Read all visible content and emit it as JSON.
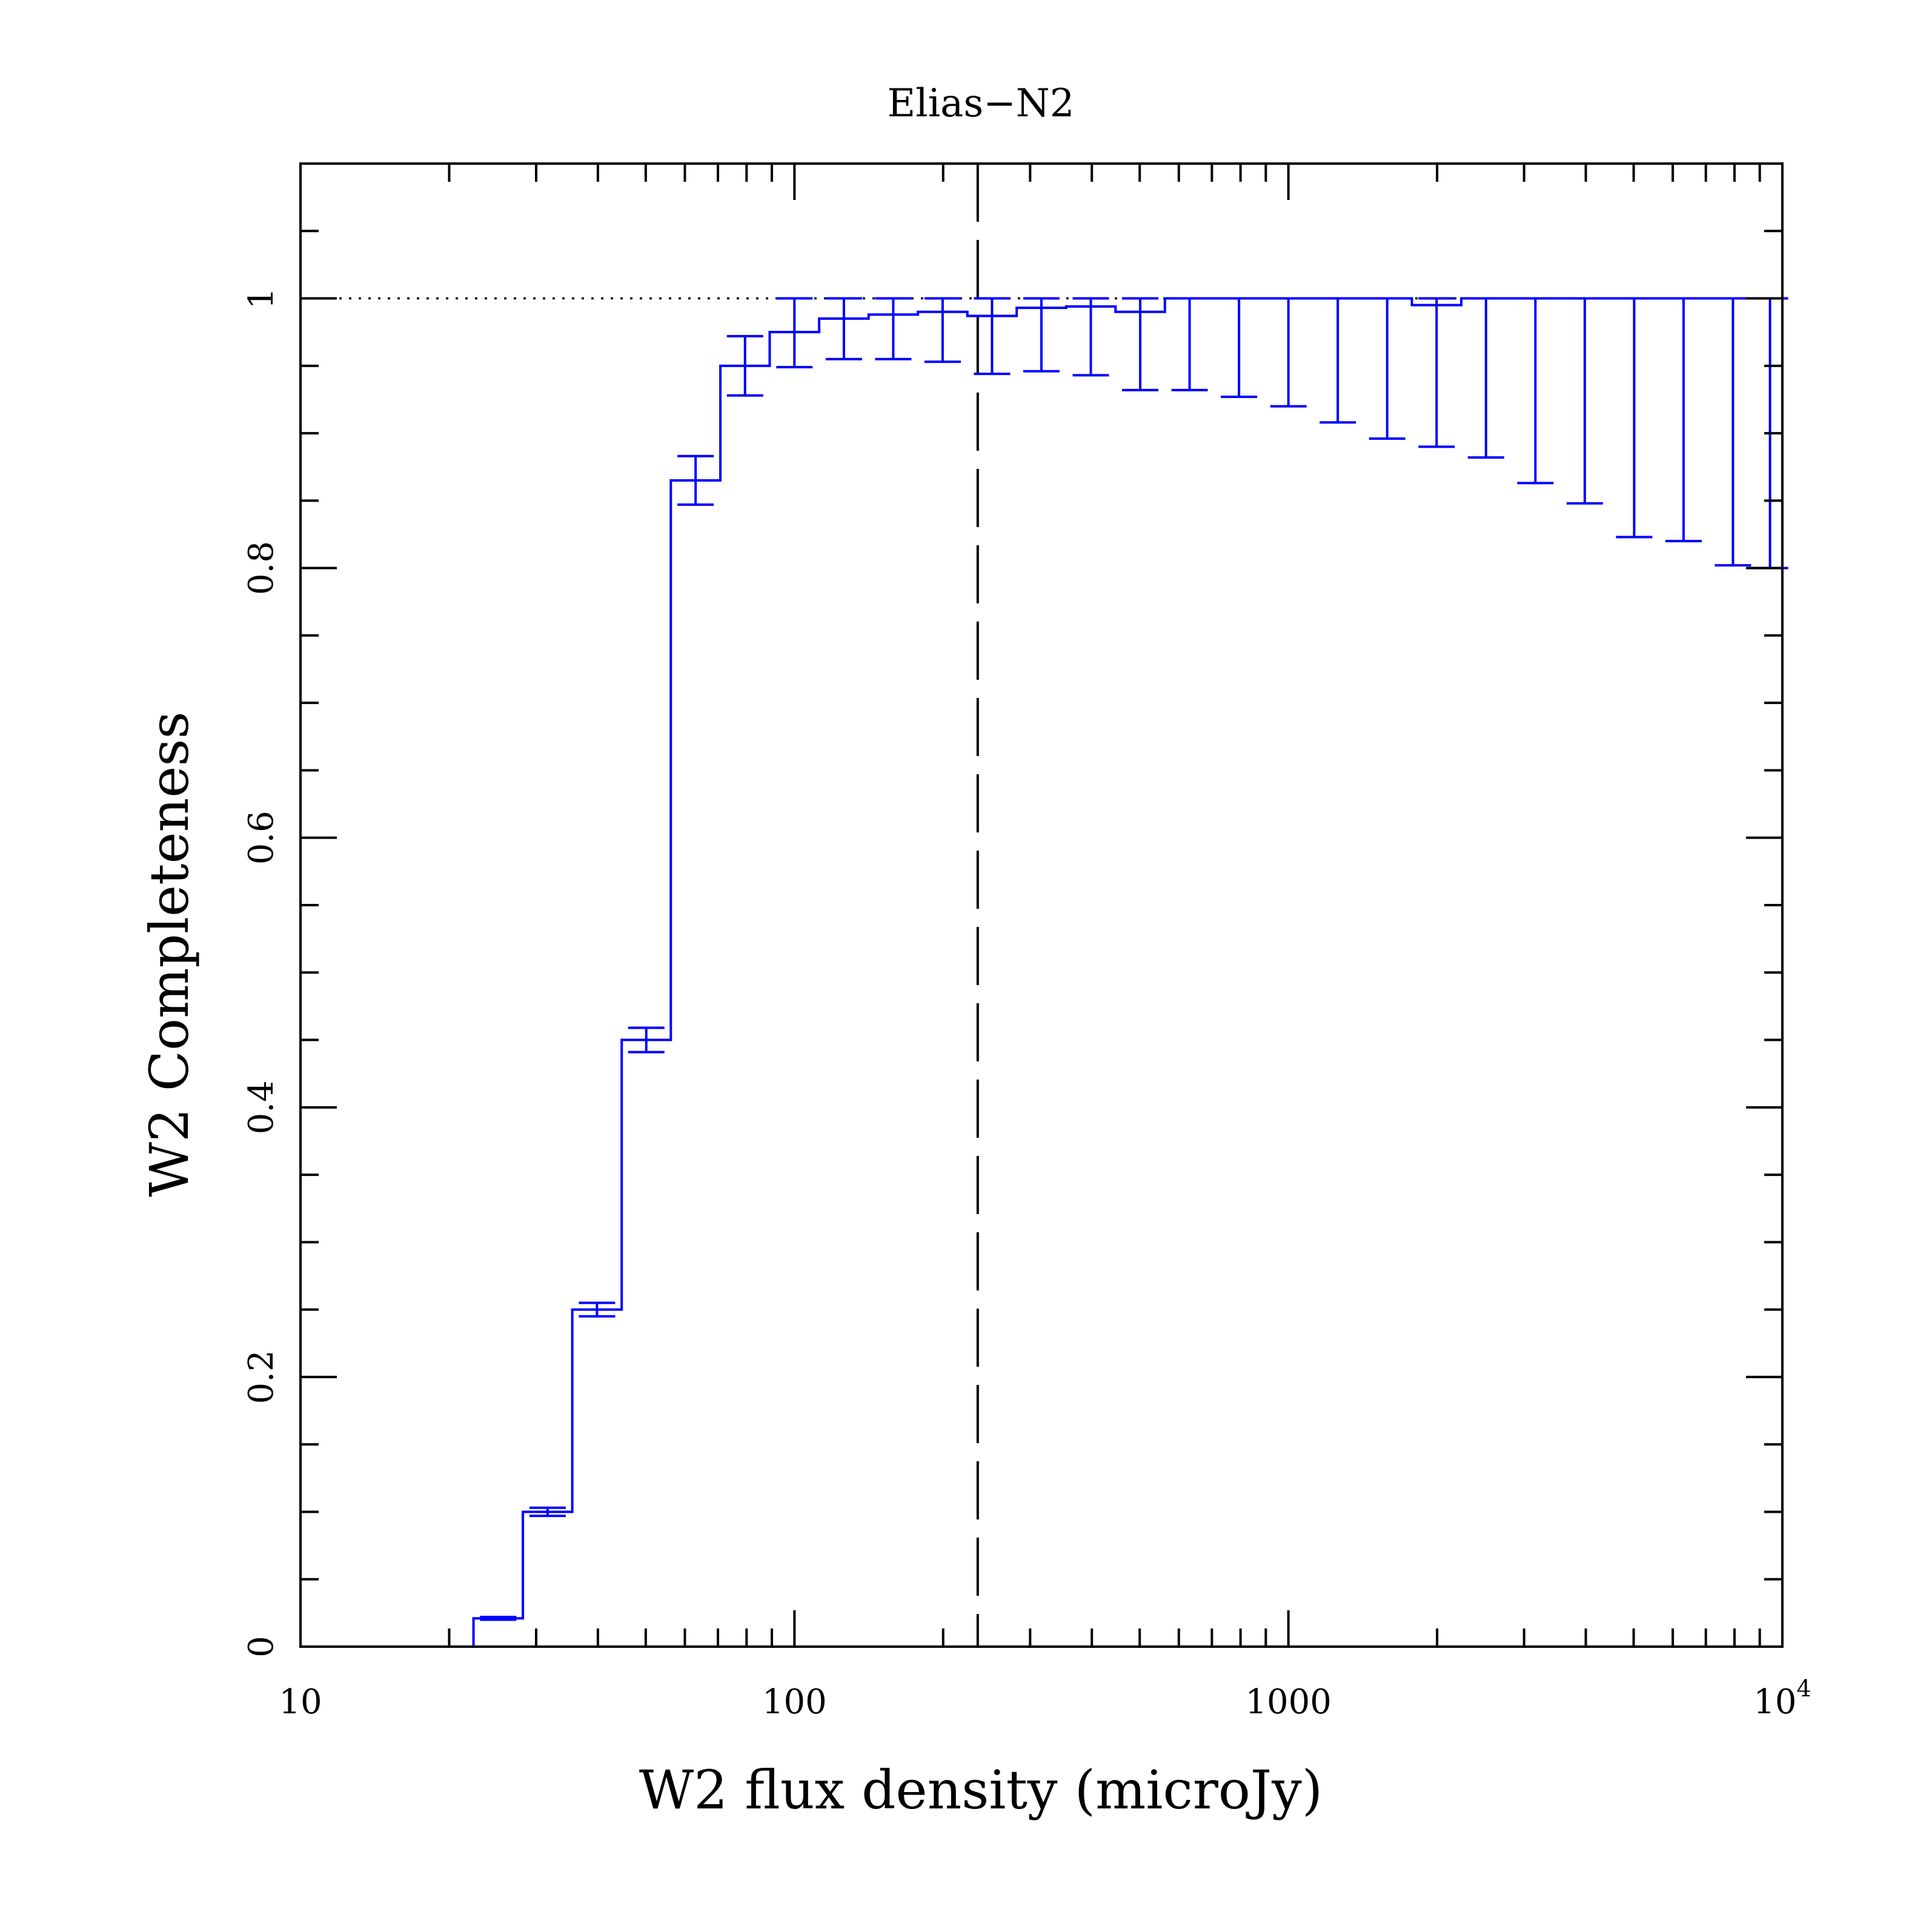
{
  "chart_data": {
    "type": "line",
    "title": "Elias−N2",
    "xlabel": "W2 flux density (microJy)",
    "ylabel": "W2 Completeness",
    "x_scale": "log",
    "xlim": [
      10,
      10000
    ],
    "ylim": [
      0,
      1.1
    ],
    "x_ticks": [
      {
        "value": 10,
        "label": "10"
      },
      {
        "value": 100,
        "label": "100"
      },
      {
        "value": 1000,
        "label": "1000"
      },
      {
        "value": 10000,
        "label": "10",
        "sup": "4"
      }
    ],
    "y_ticks": [
      {
        "value": 0,
        "label": "0"
      },
      {
        "value": 0.2,
        "label": "0.2"
      },
      {
        "value": 0.4,
        "label": "0.4"
      },
      {
        "value": 0.6,
        "label": "0.6"
      },
      {
        "value": 0.8,
        "label": "0.8"
      },
      {
        "value": 1,
        "label": "1"
      }
    ],
    "grid": false,
    "reference_lines": {
      "horizontal_dotted_y": 1.0,
      "vertical_dashed_x": 235
    },
    "series": [
      {
        "color": "#0000ff",
        "style": "step-histogram-with-errorbars",
        "bins": [
          {
            "lo": 10.0,
            "hi": 12.6,
            "y": 0.0,
            "err_lo": 0.0,
            "err_hi": 0.0
          },
          {
            "lo": 12.6,
            "hi": 15.8,
            "y": 0.0,
            "err_lo": 0.0,
            "err_hi": 0.0
          },
          {
            "lo": 15.8,
            "hi": 20.0,
            "y": 0.0,
            "err_lo": 0.0,
            "err_hi": 0.0
          },
          {
            "lo": 20.0,
            "hi": 22.4,
            "y": 0.0,
            "err_lo": 0.0,
            "err_hi": 0.0
          },
          {
            "lo": 22.4,
            "hi": 28.2,
            "y": 0.021,
            "err_lo": 0.001,
            "err_hi": 0.001
          },
          {
            "lo": 28.2,
            "hi": 35.5,
            "y": 0.1,
            "err_lo": 0.003,
            "err_hi": 0.003
          },
          {
            "lo": 35.5,
            "hi": 44.7,
            "y": 0.25,
            "err_lo": 0.005,
            "err_hi": 0.005
          },
          {
            "lo": 44.7,
            "hi": 56.2,
            "y": 0.45,
            "err_lo": 0.009,
            "err_hi": 0.009
          },
          {
            "lo": 56.2,
            "hi": 70.8,
            "y": 0.865,
            "err_lo": 0.018,
            "err_hi": 0.018
          },
          {
            "lo": 70.8,
            "hi": 89.1,
            "y": 0.95,
            "err_lo": 0.022,
            "err_hi": 0.022
          },
          {
            "lo": 89.1,
            "hi": 112.2,
            "y": 0.975,
            "err_lo": 0.026,
            "err_hi": 0.025
          },
          {
            "lo": 112.2,
            "hi": 141.3,
            "y": 0.985,
            "err_lo": 0.03,
            "err_hi": 0.015
          },
          {
            "lo": 141.3,
            "hi": 177.8,
            "y": 0.988,
            "err_lo": 0.033,
            "err_hi": 0.012
          },
          {
            "lo": 177.8,
            "hi": 223.9,
            "y": 0.99,
            "err_lo": 0.037,
            "err_hi": 0.01
          },
          {
            "lo": 223.9,
            "hi": 281.8,
            "y": 0.987,
            "err_lo": 0.043,
            "err_hi": 0.013
          },
          {
            "lo": 281.8,
            "hi": 354.8,
            "y": 0.993,
            "err_lo": 0.047,
            "err_hi": 0.007
          },
          {
            "lo": 354.8,
            "hi": 446.7,
            "y": 0.994,
            "err_lo": 0.051,
            "err_hi": 0.006
          },
          {
            "lo": 446.7,
            "hi": 562.3,
            "y": 0.99,
            "err_lo": 0.058,
            "err_hi": 0.01
          },
          {
            "lo": 562.3,
            "hi": 707.9,
            "y": 1.0,
            "err_lo": 0.068,
            "err_hi": 0.0
          },
          {
            "lo": 707.9,
            "hi": 891.3,
            "y": 1.0,
            "err_lo": 0.073,
            "err_hi": 0.0
          },
          {
            "lo": 891.3,
            "hi": 1122.0,
            "y": 1.0,
            "err_lo": 0.08,
            "err_hi": 0.0
          },
          {
            "lo": 1122.0,
            "hi": 1412.5,
            "y": 1.0,
            "err_lo": 0.092,
            "err_hi": 0.0
          },
          {
            "lo": 1412.5,
            "hi": 1778.3,
            "y": 1.0,
            "err_lo": 0.104,
            "err_hi": 0.0
          },
          {
            "lo": 1778.3,
            "hi": 2238.7,
            "y": 0.995,
            "err_lo": 0.105,
            "err_hi": 0.005
          },
          {
            "lo": 2238.7,
            "hi": 2818.4,
            "y": 1.0,
            "err_lo": 0.118,
            "err_hi": 0.0
          },
          {
            "lo": 2818.4,
            "hi": 3548.1,
            "y": 1.0,
            "err_lo": 0.137,
            "err_hi": 0.0
          },
          {
            "lo": 3548.1,
            "hi": 4466.8,
            "y": 1.0,
            "err_lo": 0.152,
            "err_hi": 0.0
          },
          {
            "lo": 4466.8,
            "hi": 5623.4,
            "y": 1.0,
            "err_lo": 0.177,
            "err_hi": 0.0
          },
          {
            "lo": 5623.4,
            "hi": 7079.5,
            "y": 1.0,
            "err_lo": 0.18,
            "err_hi": 0.0
          },
          {
            "lo": 7079.5,
            "hi": 8912.5,
            "y": 1.0,
            "err_lo": 0.198,
            "err_hi": 0.0
          },
          {
            "lo": 8912.5,
            "hi": 10000.0,
            "y": 1.0,
            "err_lo": 0.2,
            "err_hi": 0.0
          }
        ]
      }
    ]
  }
}
